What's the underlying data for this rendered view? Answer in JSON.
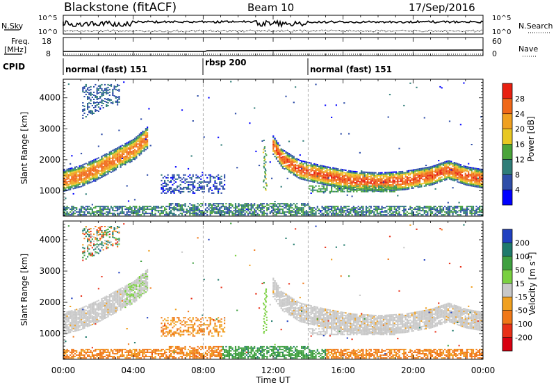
{
  "header": {
    "station": "Blackstone (fitACF)",
    "beam": "Beam 10",
    "date": "17/Sep/2016"
  },
  "noise_panel": {
    "left_label": "N.Sky",
    "right_label": "N.Search",
    "left_ticks": [
      "10^5",
      "10^0"
    ],
    "right_ticks": [
      "10^5",
      "10^0"
    ]
  },
  "freq_panel": {
    "left_label": "Freq.",
    "left_unit": "[MHz]",
    "right_label": "Nave",
    "left_ticks": [
      "18",
      "8"
    ],
    "right_ticks": [
      "60",
      "0"
    ]
  },
  "cpid": {
    "label": "CPID",
    "segments": [
      {
        "text": "normal (fast) 151",
        "start_hour": 0,
        "end_hour": 8
      },
      {
        "text": "rbsp 200",
        "start_hour": 8,
        "end_hour": 14
      },
      {
        "text": "normal (fast) 151",
        "start_hour": 14,
        "end_hour": 24
      }
    ]
  },
  "chart_data": [
    {
      "type": "heatmap",
      "title": "",
      "xlabel": "Time UT",
      "ylabel": "Slant Range [km]",
      "xlim": [
        0,
        24
      ],
      "ylim": [
        180,
        4600
      ],
      "x_ticks": [
        "00:00",
        "04:00",
        "08:00",
        "12:00",
        "16:00",
        "20:00",
        "00:00"
      ],
      "y_ticks": [
        "1000",
        "2000",
        "3000",
        "4000"
      ],
      "colorbar": {
        "label": "Power [dB]",
        "ticks": [
          "4",
          "8",
          "12",
          "16",
          "20",
          "24",
          "28"
        ],
        "range": [
          0,
          30
        ],
        "colors": [
          "#0000ff",
          "#2e4da8",
          "#2f7d78",
          "#4aa43a",
          "#e8c822",
          "#f0a020",
          "#f06818",
          "#e82010"
        ]
      },
      "echo_bands": [
        {
          "name": "dayside scatter",
          "points": [
            [
              0,
              1300
            ],
            [
              1,
              1450
            ],
            [
              2,
              1700
            ],
            [
              3,
              2000
            ],
            [
              4,
              2300
            ],
            [
              4.8,
              2700
            ]
          ],
          "peak_db": 26
        },
        {
          "name": "afternoon scatter",
          "points": [
            [
              11.9,
              2500
            ],
            [
              12.5,
              2000
            ],
            [
              13.5,
              1650
            ],
            [
              15,
              1450
            ],
            [
              16.5,
              1300
            ],
            [
              18,
              1250
            ],
            [
              19.5,
              1300
            ],
            [
              21,
              1450
            ],
            [
              22,
              1650
            ],
            [
              23,
              1450
            ],
            [
              24,
              1350
            ]
          ],
          "peak_db": 28
        }
      ]
    },
    {
      "type": "heatmap",
      "title": "",
      "xlabel": "Time UT",
      "ylabel": "Slant Range [km]",
      "xlim": [
        0,
        24
      ],
      "ylim": [
        180,
        4600
      ],
      "x_ticks": [
        "00:00",
        "04:00",
        "08:00",
        "12:00",
        "16:00",
        "20:00",
        "00:00"
      ],
      "y_ticks": [
        "1000",
        "2000",
        "3000",
        "4000"
      ],
      "colorbar": {
        "label": "Velocity [m s^-1]",
        "ticks": [
          "200",
          "100",
          "50",
          "15",
          "-15",
          "-50",
          "-100",
          "-200"
        ],
        "range": [
          -250,
          250
        ],
        "colors": [
          "#2040c0",
          "#1f7a6c",
          "#3fa040",
          "#7ad040",
          "#c8c8c8",
          "#f0a020",
          "#f07818",
          "#e83018",
          "#d80010"
        ]
      },
      "echo_bands": [
        {
          "name": "ground scatter",
          "velocity": 0
        },
        {
          "name": "near-range scatter",
          "velocity": -60
        },
        {
          "name": "morning patch",
          "velocity": -60
        }
      ]
    }
  ],
  "axis_title": "Time UT"
}
